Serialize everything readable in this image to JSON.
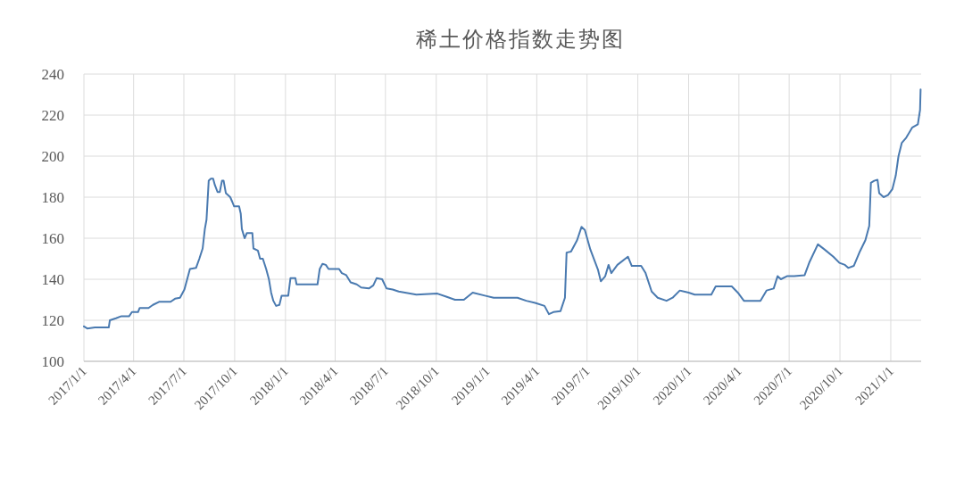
{
  "chart_data": {
    "type": "line",
    "title": "稀土价格指数走势图",
    "x": [
      "2017-01-01",
      "2017-01-07",
      "2017-01-21",
      "2017-02-15",
      "2017-02-17",
      "2017-02-28",
      "2017-03-10",
      "2017-03-24",
      "2017-03-29",
      "2017-04-09",
      "2017-04-12",
      "2017-04-28",
      "2017-05-06",
      "2017-05-17",
      "2017-06-07",
      "2017-06-15",
      "2017-06-24",
      "2017-07-02",
      "2017-07-12",
      "2017-07-23",
      "2017-07-29",
      "2017-08-04",
      "2017-08-08",
      "2017-08-11",
      "2017-08-15",
      "2017-08-19",
      "2017-08-23",
      "2017-08-26",
      "2017-08-31",
      "2017-09-04",
      "2017-09-08",
      "2017-09-11",
      "2017-09-15",
      "2017-09-23",
      "2017-09-27",
      "2017-09-30",
      "2017-10-09",
      "2017-10-12",
      "2017-10-14",
      "2017-10-19",
      "2017-10-23",
      "2017-11-02",
      "2017-11-04",
      "2017-11-12",
      "2017-11-16",
      "2017-11-21",
      "2017-11-27",
      "2017-12-02",
      "2017-12-06",
      "2017-12-10",
      "2017-12-15",
      "2017-12-21",
      "2017-12-25",
      "2018-01-06",
      "2018-01-10",
      "2018-01-19",
      "2018-01-21",
      "2018-02-28",
      "2018-03-04",
      "2018-03-09",
      "2018-03-15",
      "2018-03-20",
      "2018-04-08",
      "2018-04-13",
      "2018-04-21",
      "2018-04-29",
      "2018-05-10",
      "2018-05-18",
      "2018-06-01",
      "2018-06-09",
      "2018-06-15",
      "2018-06-25",
      "2018-07-03",
      "2018-07-14",
      "2018-07-25",
      "2018-08-26",
      "2018-10-03",
      "2018-10-19",
      "2018-11-04",
      "2018-11-20",
      "2018-12-06",
      "2018-12-28",
      "2019-01-13",
      "2019-02-25",
      "2019-03-13",
      "2019-03-29",
      "2019-04-15",
      "2019-04-23",
      "2019-05-01",
      "2019-05-14",
      "2019-05-22",
      "2019-05-25",
      "2019-06-02",
      "2019-06-13",
      "2019-06-21",
      "2019-06-27",
      "2019-07-07",
      "2019-07-21",
      "2019-07-26",
      "2019-08-03",
      "2019-08-09",
      "2019-08-14",
      "2019-08-25",
      "2019-09-13",
      "2019-09-20",
      "2019-10-07",
      "2019-10-15",
      "2019-10-26",
      "2019-11-06",
      "2019-11-22",
      "2019-12-03",
      "2019-12-16",
      "2020-01-01",
      "2020-01-12",
      "2020-02-11",
      "2020-02-19",
      "2020-03-03",
      "2020-03-19",
      "2020-03-30",
      "2020-04-10",
      "2020-04-26",
      "2020-05-10",
      "2020-05-21",
      "2020-06-03",
      "2020-06-10",
      "2020-06-16",
      "2020-06-27",
      "2020-07-10",
      "2020-07-29",
      "2020-08-07",
      "2020-08-22",
      "2020-09-03",
      "2020-09-19",
      "2020-09-30",
      "2020-10-10",
      "2020-10-16",
      "2020-10-26",
      "2020-11-06",
      "2020-11-16",
      "2020-11-23",
      "2020-11-26",
      "2020-12-02",
      "2020-12-08",
      "2020-12-11",
      "2020-12-19",
      "2020-12-27",
      "2021-01-04",
      "2021-01-10",
      "2021-01-15",
      "2021-01-21",
      "2021-01-29",
      "2021-02-09",
      "2021-02-19",
      "2021-02-23",
      "2021-02-24"
    ],
    "series": [
      {
        "color": "#4a7ab0",
        "values": [
          117,
          116,
          116.5,
          116.5,
          120,
          121,
          122,
          122,
          124,
          124,
          126,
          126,
          127.5,
          129,
          129,
          130.5,
          131,
          135,
          145,
          145.5,
          150,
          155,
          164.5,
          169,
          188,
          189,
          189,
          186,
          182.5,
          182.5,
          188,
          188,
          182,
          180,
          177.5,
          175.5,
          175.5,
          172,
          164.5,
          160,
          162.5,
          162.5,
          155,
          154,
          150,
          150,
          145,
          140,
          133.5,
          129.5,
          127,
          127.5,
          132,
          132,
          140.5,
          140.5,
          137.5,
          137.5,
          145,
          147.5,
          147,
          145,
          145,
          143,
          142,
          138.5,
          137.5,
          136,
          135.5,
          137,
          140.5,
          140,
          135.5,
          135,
          134,
          132.5,
          133,
          131.5,
          130,
          130,
          133.5,
          132,
          131,
          131,
          129.5,
          128.5,
          127,
          123,
          124,
          124.5,
          131,
          153,
          153.5,
          159,
          165.5,
          164,
          154.5,
          144.5,
          139,
          141.5,
          147,
          143,
          147,
          151,
          146.5,
          146.5,
          143,
          134,
          131,
          129.5,
          131,
          134.5,
          133.5,
          132.5,
          132.5,
          136.5,
          136.5,
          136.5,
          133.5,
          129.5,
          129.5,
          129.5,
          134.5,
          135.5,
          141.5,
          140,
          141.5,
          141.5,
          142,
          148.5,
          157,
          154.5,
          151,
          148,
          147,
          145.5,
          146.5,
          153.5,
          159,
          166,
          187,
          188,
          188.5,
          182,
          180,
          181,
          184,
          190.5,
          200,
          206.5,
          209,
          214,
          215.5,
          222.5,
          232.5
        ]
      }
    ],
    "xlim": [
      "2017-01-01",
      "2021-02-25"
    ],
    "ylim": [
      100,
      240
    ],
    "yticks": [
      100,
      120,
      140,
      160,
      180,
      200,
      220,
      240
    ],
    "xticks": [
      {
        "value": "2017-01-01",
        "label": "2017/1/1"
      },
      {
        "value": "2017-04-01",
        "label": "2017/4/1"
      },
      {
        "value": "2017-07-01",
        "label": "2017/7/1"
      },
      {
        "value": "2017-10-01",
        "label": "2017/10/1"
      },
      {
        "value": "2018-01-01",
        "label": "2018/1/1"
      },
      {
        "value": "2018-04-01",
        "label": "2018/4/1"
      },
      {
        "value": "2018-07-01",
        "label": "2018/7/1"
      },
      {
        "value": "2018-10-01",
        "label": "2018/10/1"
      },
      {
        "value": "2019-01-01",
        "label": "2019/1/1"
      },
      {
        "value": "2019-04-01",
        "label": "2019/4/1"
      },
      {
        "value": "2019-07-01",
        "label": "2019/7/1"
      },
      {
        "value": "2019-10-01",
        "label": "2019/10/1"
      },
      {
        "value": "2020-01-01",
        "label": "2020/1/1"
      },
      {
        "value": "2020-04-01",
        "label": "2020/4/1"
      },
      {
        "value": "2020-07-01",
        "label": "2020/7/1"
      },
      {
        "value": "2020-10-01",
        "label": "2020/10/1"
      },
      {
        "value": "2021-01-01",
        "label": "2021/1/1"
      }
    ],
    "grid": true
  }
}
